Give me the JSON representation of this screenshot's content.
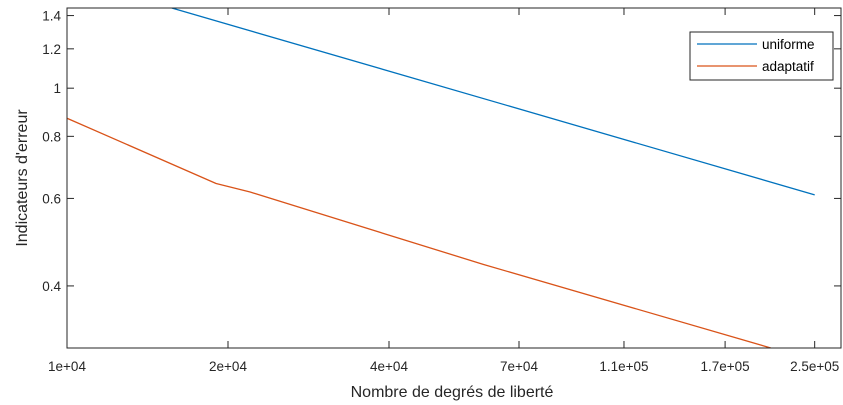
{
  "chart_data": {
    "type": "line",
    "xlabel": "Nombre de degrés de liberté",
    "ylabel": "Indicateurs d'erreur",
    "xscale": "log",
    "yscale": "log",
    "xlim": [
      10000,
      280000
    ],
    "ylim": [
      0.3,
      1.45
    ],
    "x_ticks": [
      10000,
      20000,
      40000,
      70000,
      110000,
      170000,
      250000
    ],
    "x_tick_labels": [
      "1e+04",
      "2e+04",
      "4e+04",
      "7e+04",
      "1.1e+05",
      "1.7e+05",
      "2.5e+05"
    ],
    "y_ticks": [
      0.4,
      0.6,
      0.8,
      1,
      1.2,
      1.4
    ],
    "y_tick_labels": [
      "0.4",
      "0.6",
      "0.8",
      "1",
      "1.2",
      "1.4"
    ],
    "grid": false,
    "legend_position": "top-right",
    "series": [
      {
        "name": "uniforme",
        "color": "#0072BD",
        "x": [
          15700,
          250000
        ],
        "y": [
          1.45,
          0.61
        ]
      },
      {
        "name": "adaptatif",
        "color": "#D95319",
        "x": [
          10000,
          19000,
          22000,
          60000,
          207000
        ],
        "y": [
          0.87,
          0.643,
          0.618,
          0.442,
          0.3
        ]
      }
    ]
  }
}
